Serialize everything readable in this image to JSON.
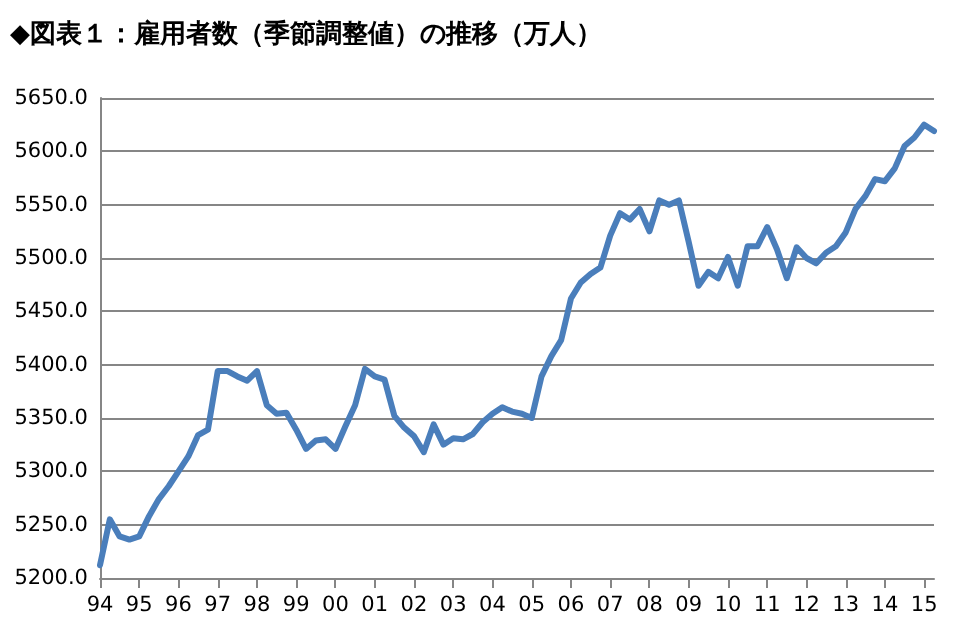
{
  "chart_data": {
    "type": "line",
    "title": "◆図表１：雇用者数（季節調整値）の推移（万人）",
    "categories": [
      "94",
      null,
      null,
      null,
      "95",
      null,
      null,
      null,
      "96",
      null,
      null,
      null,
      "97",
      null,
      null,
      null,
      "98",
      null,
      null,
      null,
      "99",
      null,
      null,
      null,
      "00",
      null,
      null,
      null,
      "01",
      null,
      null,
      null,
      "02",
      null,
      null,
      null,
      "03",
      null,
      null,
      null,
      "04",
      null,
      null,
      null,
      "05",
      null,
      null,
      null,
      "06",
      null,
      null,
      null,
      "07",
      null,
      null,
      null,
      "08",
      null,
      null,
      null,
      "09",
      null,
      null,
      null,
      "10",
      null,
      null,
      null,
      "11",
      null,
      null,
      null,
      "12",
      null,
      null,
      null,
      "13",
      null,
      null,
      null,
      "14",
      null,
      null,
      null,
      "15",
      null
    ],
    "series": [
      {
        "color": "#4a7ebb",
        "values": [
          5212,
          5255,
          5239,
          5236,
          5239,
          5258,
          5274,
          5286,
          5300,
          5314,
          5334,
          5339,
          5394,
          5394,
          5389,
          5385,
          5394,
          5362,
          5354,
          5355,
          5339,
          5321,
          5329,
          5330,
          5321,
          5342,
          5362,
          5396,
          5389,
          5386,
          5352,
          5341,
          5333,
          5318,
          5344,
          5325,
          5331,
          5330,
          5335,
          5346,
          5354,
          5360,
          5356,
          5354,
          5350,
          5389,
          5408,
          5423,
          5462,
          5477,
          5485,
          5491,
          5521,
          5542,
          5536,
          5546,
          5525,
          5554,
          5550,
          5554,
          5515,
          5474,
          5487,
          5481,
          5501,
          5474,
          5511,
          5511,
          5529,
          5508,
          5481,
          5510,
          5500,
          5495,
          5505,
          5511,
          5524,
          5546,
          5558,
          5574,
          5572,
          5584,
          5605,
          5613,
          5625,
          5619
        ]
      }
    ],
    "ylim": [
      5200,
      5650
    ],
    "yticks": [
      {
        "value": 5200,
        "label": "5200.0"
      },
      {
        "value": 5250,
        "label": "5250.0"
      },
      {
        "value": 5300,
        "label": "5300.0"
      },
      {
        "value": 5350,
        "label": "5350.0"
      },
      {
        "value": 5400,
        "label": "5400.0"
      },
      {
        "value": 5450,
        "label": "5450.0"
      },
      {
        "value": 5500,
        "label": "5500.0"
      },
      {
        "value": 5550,
        "label": "5550.0"
      },
      {
        "value": 5600,
        "label": "5600.0"
      },
      {
        "value": 5650,
        "label": "5650.0"
      }
    ],
    "grid": "y",
    "marker": "none",
    "line_style": "solid"
  }
}
